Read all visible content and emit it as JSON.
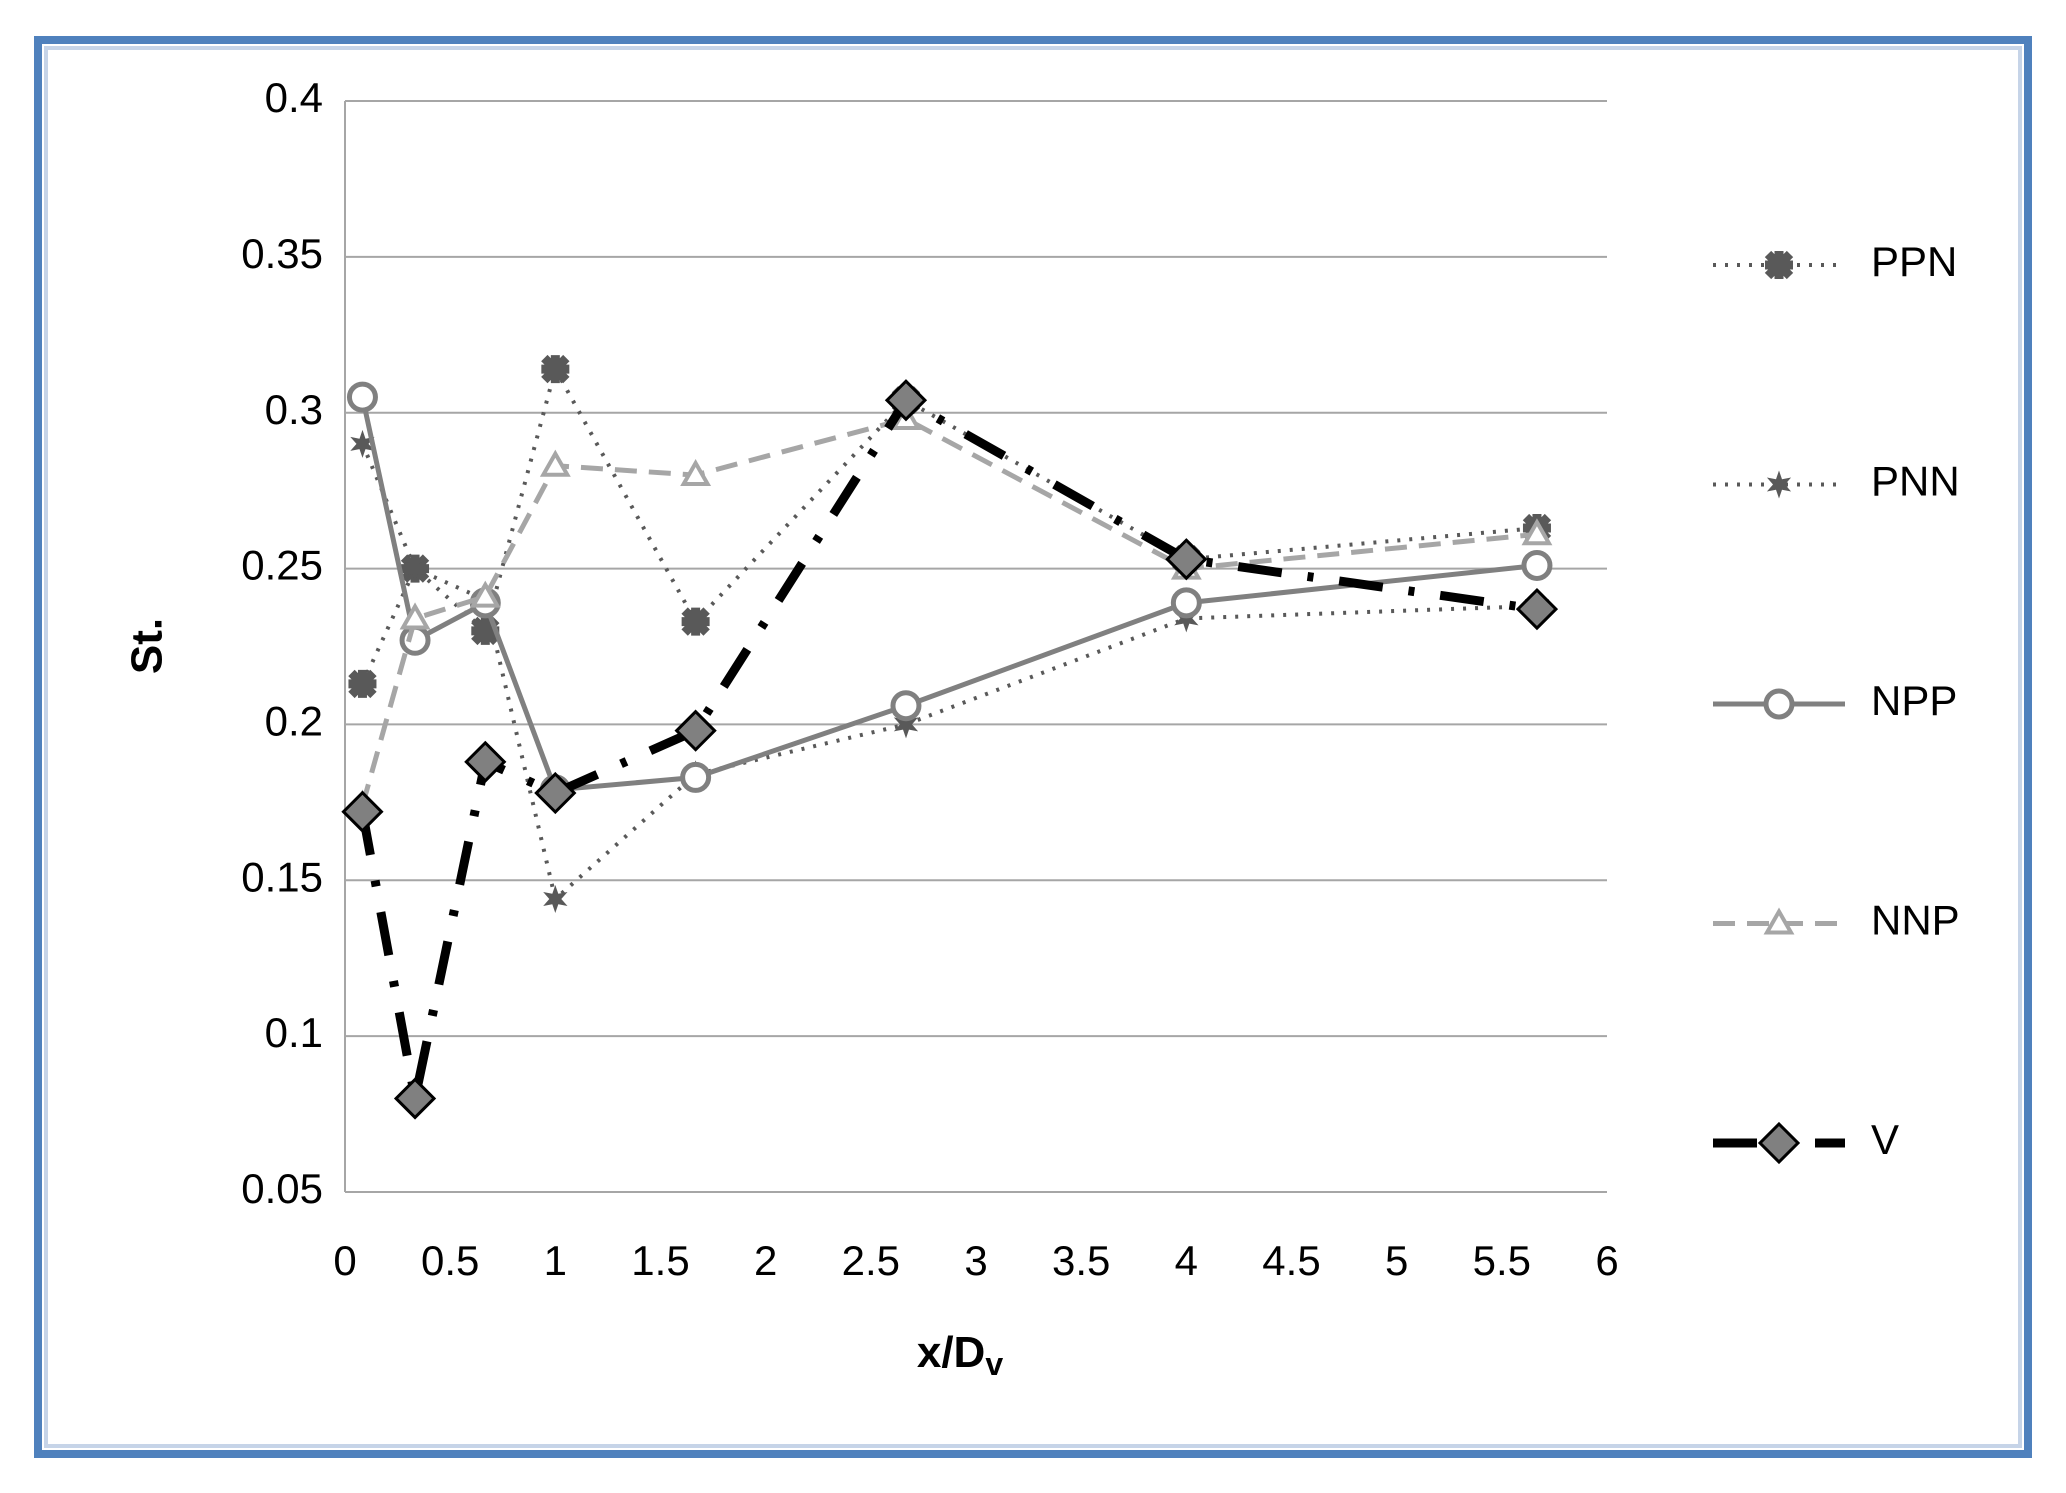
{
  "chart_data": {
    "type": "line",
    "x_label": "x/D",
    "x_label_subscript": "v",
    "y_label": "St.",
    "x": [
      0.083,
      0.333,
      0.667,
      1,
      1.667,
      2.667,
      4,
      5.667
    ],
    "series": [
      {
        "name": "PPN",
        "color": "#595959",
        "dash": "dotted",
        "marker": "cross",
        "values": [
          0.213,
          0.25,
          0.23,
          0.314,
          0.233,
          0.304,
          0.253,
          0.263
        ]
      },
      {
        "name": "PNN",
        "color": "#595959",
        "dash": "dotted",
        "marker": "star",
        "values": [
          0.29,
          0.25,
          0.24,
          0.144,
          0.184,
          0.2,
          0.234,
          0.238
        ]
      },
      {
        "name": "NPP",
        "color": "#808080",
        "dash": "solid",
        "marker": "circle",
        "values": [
          0.305,
          0.227,
          0.239,
          0.179,
          0.183,
          0.206,
          0.239,
          0.251
        ]
      },
      {
        "name": "NNP",
        "color": "#a6a6a6",
        "dash": "dashed",
        "marker": "triangle",
        "values": [
          0.174,
          0.234,
          0.241,
          0.283,
          0.28,
          0.298,
          0.25,
          0.261
        ]
      },
      {
        "name": "V",
        "color": "#000000",
        "dash": "dashdot",
        "marker": "diamond",
        "values": [
          0.172,
          0.08,
          0.188,
          0.178,
          0.198,
          0.304,
          0.253,
          0.237
        ]
      }
    ],
    "xlim": [
      0,
      6
    ],
    "xticks": [
      0,
      0.5,
      1,
      1.5,
      2,
      2.5,
      3,
      3.5,
      4,
      4.5,
      5,
      5.5,
      6
    ],
    "ylim": [
      0.05,
      0.4
    ],
    "yticks": [
      0.05,
      0.1,
      0.15,
      0.2,
      0.25,
      0.3,
      0.35,
      0.4
    ],
    "grid": true,
    "legend": "right"
  }
}
